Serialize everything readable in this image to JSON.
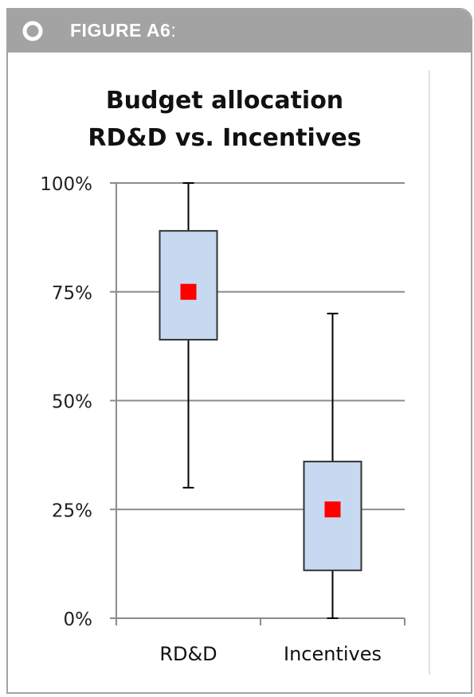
{
  "header": {
    "figure_label": "FIGURE A6",
    "colon": ":"
  },
  "chart_data": {
    "type": "box",
    "title": [
      "Budget allocation",
      "RD&D vs. Incentives"
    ],
    "xlabel": "",
    "ylabel": "",
    "categories": [
      "RD&D",
      "Incentives"
    ],
    "ylim": [
      0,
      100
    ],
    "y_ticks": [
      0,
      25,
      50,
      75,
      100
    ],
    "y_tick_labels": [
      "0%",
      "25%",
      "50%",
      "75%",
      "100%"
    ],
    "grid": true,
    "boxes": [
      {
        "category": "RD&D",
        "min": 30,
        "q1": 64,
        "mean": 75,
        "q3": 89,
        "max": 100
      },
      {
        "category": "Incentives",
        "min": 0,
        "q1": 11,
        "mean": 25,
        "q3": 36,
        "max": 70
      }
    ],
    "colors": {
      "box_fill": "#c6d9f1",
      "box_stroke": "#333333",
      "mean_marker": "#ff0000",
      "grid": "#8c8c8c"
    }
  }
}
